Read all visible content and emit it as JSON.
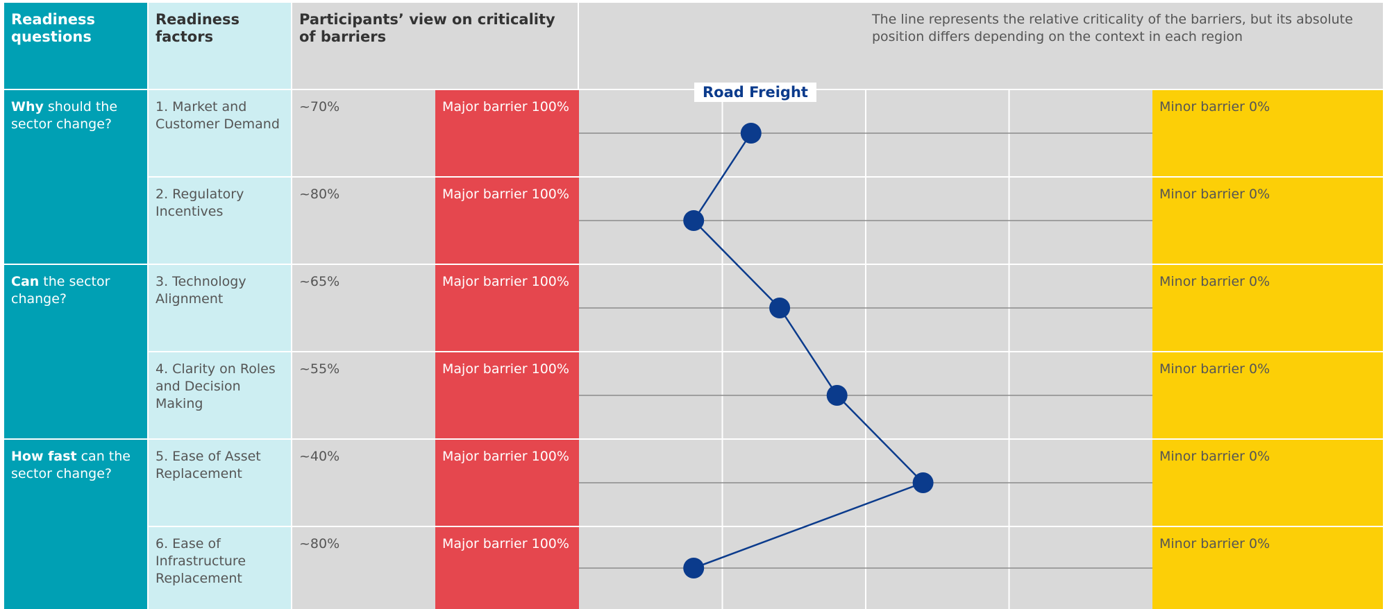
{
  "chart_data": {
    "type": "line",
    "headers": {
      "questions": "Readiness questions",
      "factors": "Readiness factors",
      "criticality": "Participants’ view on criticality of barriers"
    },
    "note": "The line represents the relative criticality of the barriers, but its absolute position differs depending on the context in each region",
    "questions": [
      {
        "bold": "Why",
        "text": "should the sector change?"
      },
      {
        "bold": "Can",
        "text": "the sector change?"
      },
      {
        "bold": "How fast",
        "text": "can the sector change?"
      }
    ],
    "categories": [
      "1. Market and Customer Demand",
      "2. Regulatory Incentives",
      "3. Technology Alignment",
      "4. Clarity on Roles and Decision Making",
      "5. Ease of Asset Replacement",
      "6. Ease of Infrastructure Replacement"
    ],
    "series": [
      {
        "name": "Road Freight",
        "color": "#0b3b8c",
        "values": [
          70,
          80,
          65,
          55,
          40,
          80
        ],
        "value_labels": [
          "~70%",
          "~80%",
          "~65%",
          "~55%",
          "~40%",
          "~80%"
        ]
      }
    ],
    "xlim": [
      100,
      0
    ],
    "xticks": [
      {
        "value": 100,
        "label": "Major barrier 100%"
      },
      {
        "value": 0,
        "label": "Minor barrier 0%"
      }
    ],
    "grid_lines": [
      75,
      50,
      25
    ],
    "colors": {
      "questions": "#00a0b4",
      "factors": "#cdeef2",
      "neutral": "#d9d9d9",
      "major": "#e5474e",
      "minor": "#fccf07"
    }
  }
}
